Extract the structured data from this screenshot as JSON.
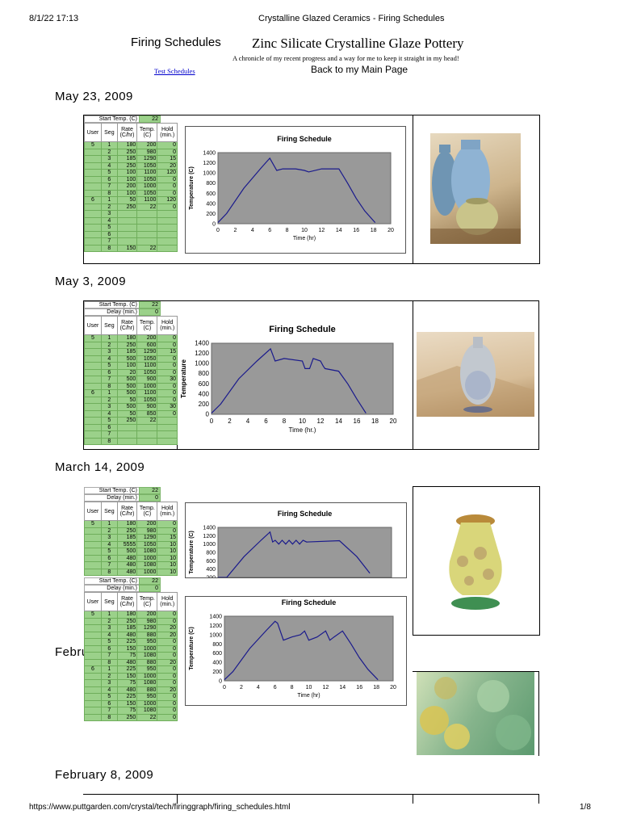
{
  "print_header": {
    "datetime": "8/1/22 17:13",
    "doc_title": "Crystalline Glazed Ceramics - Firing Schedules"
  },
  "page_header": {
    "left_title": "Firing Schedules",
    "main_title": "Zinc Silicate Crystalline Glaze Pottery",
    "subtitle": "A chronicle of my recent progress and a way for me to keep it straight in my head!",
    "test_link": "Test Schedules",
    "main_page_link": "Back to my Main Page"
  },
  "entries": [
    {
      "date": "May 23, 2009"
    },
    {
      "date": "May 3, 2009"
    },
    {
      "date": "March 14, 2009"
    },
    {
      "date": "Febru"
    },
    {
      "date": "February 8, 2009"
    }
  ],
  "sheet_labels": {
    "start_temp": "Start Temp. (C)",
    "delay": "Delay (min.)",
    "user": "User",
    "seg": "Seg",
    "rate": "Rate (C/hr)",
    "temp": "Temp. (C)",
    "hold": "Hold (min.)"
  },
  "sheets": [
    {
      "start_temp": "22",
      "delay": null,
      "rows": [
        [
          "5",
          "1",
          "180",
          "200",
          "0"
        ],
        [
          "",
          "2",
          "250",
          "980",
          "0"
        ],
        [
          "",
          "3",
          "185",
          "1290",
          "15"
        ],
        [
          "",
          "4",
          "250",
          "1050",
          "20"
        ],
        [
          "",
          "5",
          "100",
          "1100",
          "120"
        ],
        [
          "",
          "6",
          "100",
          "1050",
          "0"
        ],
        [
          "",
          "7",
          "200",
          "1000",
          "0"
        ],
        [
          "",
          "8",
          "100",
          "1050",
          "0"
        ],
        [
          "6",
          "1",
          "50",
          "1100",
          "120"
        ],
        [
          "",
          "2",
          "250",
          "22",
          "0"
        ],
        [
          "",
          "3",
          "",
          "",
          ""
        ],
        [
          "",
          "4",
          "",
          "",
          ""
        ],
        [
          "",
          "5",
          "",
          "",
          ""
        ],
        [
          "",
          "6",
          "",
          "",
          ""
        ],
        [
          "",
          "7",
          "",
          "",
          ""
        ],
        [
          "",
          "8",
          "150",
          "22",
          ""
        ]
      ]
    },
    {
      "start_temp": "22",
      "delay": "0",
      "rows": [
        [
          "5",
          "1",
          "180",
          "200",
          "0"
        ],
        [
          "",
          "2",
          "250",
          "600",
          "0"
        ],
        [
          "",
          "3",
          "185",
          "1290",
          "15"
        ],
        [
          "",
          "4",
          "500",
          "1050",
          "0"
        ],
        [
          "",
          "5",
          "100",
          "1100",
          "0"
        ],
        [
          "",
          "6",
          "20",
          "1050",
          "0"
        ],
        [
          "",
          "7",
          "500",
          "900",
          "30"
        ],
        [
          "",
          "8",
          "500",
          "1000",
          "0"
        ],
        [
          "6",
          "1",
          "500",
          "1100",
          "0"
        ],
        [
          "",
          "2",
          "50",
          "1050",
          "0"
        ],
        [
          "",
          "3",
          "500",
          "900",
          "30"
        ],
        [
          "",
          "4",
          "50",
          "850",
          "0"
        ],
        [
          "",
          "5",
          "250",
          "22",
          ""
        ],
        [
          "",
          "6",
          "",
          "",
          ""
        ],
        [
          "",
          "7",
          "",
          "",
          ""
        ],
        [
          "",
          "8",
          "",
          "",
          ""
        ]
      ]
    },
    {
      "start_temp": "22",
      "delay": "0",
      "rows": [
        [
          "5",
          "1",
          "180",
          "200",
          "0"
        ],
        [
          "",
          "2",
          "250",
          "980",
          "0"
        ],
        [
          "",
          "3",
          "185",
          "1290",
          "15"
        ],
        [
          "",
          "4",
          "5555",
          "1050",
          "10"
        ],
        [
          "",
          "5",
          "500",
          "1080",
          "10"
        ],
        [
          "",
          "6",
          "480",
          "1000",
          "10"
        ],
        [
          "",
          "7",
          "480",
          "1080",
          "10"
        ],
        [
          "",
          "8",
          "480",
          "1000",
          "10"
        ]
      ]
    },
    {
      "start_temp": "22",
      "delay": "0",
      "rows": [
        [
          "5",
          "1",
          "180",
          "200",
          "0"
        ],
        [
          "",
          "2",
          "250",
          "980",
          "0"
        ],
        [
          "",
          "3",
          "185",
          "1290",
          "20"
        ],
        [
          "",
          "4",
          "480",
          "880",
          "20"
        ],
        [
          "",
          "5",
          "225",
          "950",
          "0"
        ],
        [
          "",
          "6",
          "150",
          "1000",
          "0"
        ],
        [
          "",
          "7",
          "75",
          "1080",
          "0"
        ],
        [
          "",
          "8",
          "480",
          "880",
          "20"
        ],
        [
          "6",
          "1",
          "225",
          "950",
          "0"
        ],
        [
          "",
          "2",
          "150",
          "1000",
          "0"
        ],
        [
          "",
          "3",
          "75",
          "1080",
          "0"
        ],
        [
          "",
          "4",
          "480",
          "880",
          "20"
        ],
        [
          "",
          "5",
          "225",
          "950",
          "0"
        ],
        [
          "",
          "6",
          "150",
          "1000",
          "0"
        ],
        [
          "",
          "7",
          "75",
          "1080",
          "0"
        ],
        [
          "",
          "8",
          "250",
          "22",
          "0"
        ]
      ]
    }
  ],
  "chart_data": [
    {
      "type": "line",
      "title": "Firing Schedule",
      "xlabel": "Time (hr)",
      "ylabel": "Temperature (C)",
      "xlim": [
        0,
        20
      ],
      "ylim": [
        0,
        1400
      ],
      "xticks": [
        0,
        2,
        4,
        6,
        8,
        10,
        12,
        14,
        16,
        18,
        20
      ],
      "yticks": [
        0,
        200,
        400,
        600,
        800,
        1000,
        1200,
        1400
      ],
      "x": [
        0,
        1,
        3,
        5,
        6,
        6.8,
        7.5,
        9,
        10,
        10.5,
        12,
        13,
        14,
        15,
        16,
        17,
        18.2
      ],
      "y": [
        22,
        200,
        700,
        1100,
        1290,
        1050,
        1080,
        1080,
        1050,
        1020,
        1080,
        1080,
        1080,
        800,
        500,
        250,
        22
      ]
    },
    {
      "type": "line",
      "title": "Firing Schedule",
      "xlabel": "Time (hr.)",
      "ylabel": "Temperature",
      "xlim": [
        0,
        20
      ],
      "ylim": [
        0,
        1400
      ],
      "xticks": [
        0,
        2,
        4,
        6,
        8,
        10,
        12,
        14,
        16,
        18,
        20
      ],
      "yticks": [
        0,
        200,
        400,
        600,
        800,
        1000,
        1200,
        1400
      ],
      "x": [
        0,
        1,
        3,
        5,
        6.5,
        7,
        8,
        10,
        10.3,
        10.8,
        11.2,
        12,
        12.3,
        12.5,
        14,
        15,
        16,
        17
      ],
      "y": [
        22,
        200,
        700,
        1050,
        1290,
        1050,
        1100,
        1050,
        900,
        900,
        1100,
        1050,
        950,
        900,
        850,
        600,
        300,
        22
      ]
    },
    {
      "type": "line",
      "title": "Firing Schedule",
      "xlabel": "",
      "ylabel": "Temperature (C)",
      "xlim": [
        0,
        20
      ],
      "ylim": [
        200,
        1400
      ],
      "xticks": [],
      "yticks": [
        200,
        400,
        600,
        800,
        1000,
        1200,
        1400
      ],
      "x": [
        0,
        1,
        3,
        5,
        6,
        6.3,
        6.6,
        7,
        7.4,
        7.8,
        8.2,
        8.6,
        9,
        9.4,
        9.8,
        10.2,
        14,
        16,
        17.5
      ],
      "y": [
        22,
        200,
        700,
        1100,
        1290,
        1050,
        1090,
        1000,
        1090,
        1000,
        1090,
        1000,
        1090,
        1000,
        1090,
        1050,
        1080,
        700,
        300
      ]
    },
    {
      "type": "line",
      "title": "Firing Schedule",
      "xlabel": "Time (hr)",
      "ylabel": "Temperature (C)",
      "xlim": [
        0,
        20
      ],
      "ylim": [
        0,
        1400
      ],
      "xticks": [
        0,
        2,
        4,
        6,
        8,
        10,
        12,
        14,
        16,
        18,
        20
      ],
      "yticks": [
        0,
        200,
        400,
        600,
        800,
        1000,
        1200,
        1400
      ],
      "x": [
        0,
        1,
        3,
        5,
        6,
        6.3,
        7,
        8,
        9,
        9.5,
        10,
        11,
        12,
        12.5,
        13,
        14,
        15,
        16,
        17,
        18.2
      ],
      "y": [
        22,
        200,
        700,
        1100,
        1290,
        1250,
        880,
        950,
        1000,
        1080,
        880,
        950,
        1080,
        880,
        950,
        1080,
        800,
        500,
        250,
        22
      ]
    }
  ],
  "footer": {
    "url": "https://www.puttgarden.com/crystal/tech/firinggraph/firing_schedules.html",
    "page": "1/8"
  }
}
